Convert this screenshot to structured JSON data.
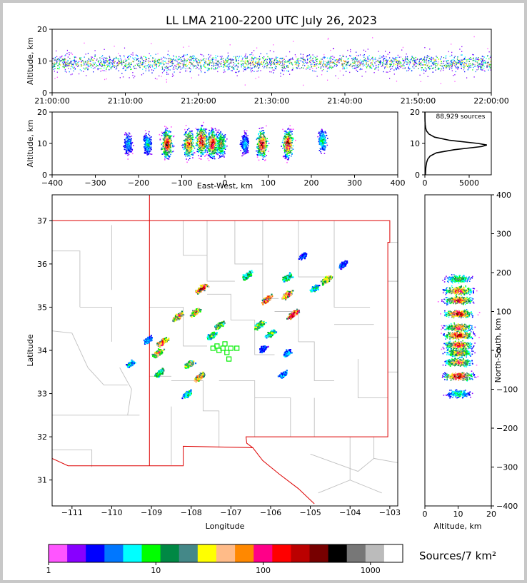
{
  "title": "LL LMA 2100-2200 UTC July 26, 2023",
  "colors": {
    "colorbar": [
      "#ff55ff",
      "#8800ff",
      "#0000ff",
      "#0077ff",
      "#00ffff",
      "#00ff00",
      "#008844",
      "#448888",
      "#ffff00",
      "#ffbb88",
      "#ff8800",
      "#ff0088",
      "#ff0000",
      "#bb0000",
      "#770000",
      "#000000",
      "#777777",
      "#bbbbbb",
      "#ffffff"
    ],
    "border_red": "#dd0000",
    "county_gray": "#c0c0c0",
    "source_green": "#00ee00"
  },
  "chart_data": [
    {
      "id": "time_height",
      "type": "scatter",
      "xlabel": "",
      "ylabel": "Altitude, km",
      "xlim": [
        "21:00:00",
        "22:00:00"
      ],
      "ylim": [
        0,
        20
      ],
      "xticks": [
        "21:00:00",
        "21:10:00",
        "21:20:00",
        "21:30:00",
        "21:40:00",
        "21:50:00",
        "22:00:00"
      ],
      "yticks": [
        "0",
        "10",
        "20"
      ],
      "band_center_km": 9.5
    },
    {
      "id": "ew_height",
      "type": "heatmap",
      "xlabel": "East-West, km",
      "ylabel": "Altitude, km",
      "xlim": [
        -400,
        400
      ],
      "ylim": [
        0,
        20
      ],
      "xticks": [
        "−400",
        "−300",
        "−200",
        "−100",
        "0",
        "100",
        "200",
        "300",
        "400"
      ],
      "yticks": [
        "0",
        "10",
        "20"
      ],
      "clusters": [
        {
          "x": -225,
          "z": 10,
          "intensity": 0.3
        },
        {
          "x": -180,
          "z": 10,
          "intensity": 0.35
        },
        {
          "x": -135,
          "z": 10,
          "intensity": 0.95
        },
        {
          "x": -85,
          "z": 10,
          "intensity": 0.85
        },
        {
          "x": -55,
          "z": 11,
          "intensity": 1.0
        },
        {
          "x": -30,
          "z": 10,
          "intensity": 0.9
        },
        {
          "x": -10,
          "z": 10,
          "intensity": 0.6
        },
        {
          "x": 45,
          "z": 10,
          "intensity": 0.3
        },
        {
          "x": 85,
          "z": 10,
          "intensity": 0.95
        },
        {
          "x": 145,
          "z": 10,
          "intensity": 0.95
        },
        {
          "x": 225,
          "z": 11,
          "intensity": 0.4
        }
      ]
    },
    {
      "id": "alt_histogram",
      "type": "line",
      "annotation": "88,929 sources",
      "xlim": [
        0,
        7500
      ],
      "ylim": [
        0,
        20
      ],
      "xticks": [
        "0",
        "5000"
      ],
      "yticks": [
        "0",
        "10",
        "20"
      ],
      "profile": [
        [
          0,
          60
        ],
        [
          1,
          80
        ],
        [
          2,
          100
        ],
        [
          3,
          140
        ],
        [
          4,
          200
        ],
        [
          5,
          320
        ],
        [
          6,
          600
        ],
        [
          7,
          1300
        ],
        [
          8,
          3300
        ],
        [
          9,
          6400
        ],
        [
          9.5,
          7000
        ],
        [
          10,
          6000
        ],
        [
          11,
          2800
        ],
        [
          12,
          1100
        ],
        [
          13,
          450
        ],
        [
          14,
          180
        ],
        [
          15,
          80
        ],
        [
          16,
          40
        ],
        [
          17,
          20
        ],
        [
          18,
          10
        ],
        [
          20,
          5
        ]
      ]
    },
    {
      "id": "plan_view",
      "type": "heatmap",
      "xlabel": "Longitude",
      "ylabel": "Latitude",
      "xlim": [
        -111.5,
        -102.8
      ],
      "ylim": [
        30.4,
        37.6
      ],
      "xticks": [
        "−111",
        "−110",
        "−109",
        "−108",
        "−107",
        "−106",
        "−105",
        "−104",
        "−103"
      ],
      "yticks": [
        "31",
        "32",
        "33",
        "34",
        "35",
        "36",
        "37"
      ],
      "clusters": [
        {
          "lon": -107.75,
          "lat": 35.45,
          "intensity": 0.9
        },
        {
          "lon": -107.9,
          "lat": 34.9,
          "intensity": 0.7
        },
        {
          "lon": -108.35,
          "lat": 34.8,
          "intensity": 0.8
        },
        {
          "lon": -108.75,
          "lat": 34.2,
          "intensity": 0.85
        },
        {
          "lon": -108.85,
          "lat": 33.95,
          "intensity": 0.7
        },
        {
          "lon": -108.8,
          "lat": 33.5,
          "intensity": 0.5
        },
        {
          "lon": -108.05,
          "lat": 33.7,
          "intensity": 0.6
        },
        {
          "lon": -107.8,
          "lat": 33.4,
          "intensity": 0.8
        },
        {
          "lon": -108.1,
          "lat": 33.0,
          "intensity": 0.4
        },
        {
          "lon": -107.3,
          "lat": 34.6,
          "intensity": 0.6
        },
        {
          "lon": -107.5,
          "lat": 34.35,
          "intensity": 0.5
        },
        {
          "lon": -109.55,
          "lat": 33.7,
          "intensity": 0.35
        },
        {
          "lon": -109.1,
          "lat": 34.25,
          "intensity": 0.3
        },
        {
          "lon": -106.6,
          "lat": 35.75,
          "intensity": 0.5
        },
        {
          "lon": -106.1,
          "lat": 35.2,
          "intensity": 0.9
        },
        {
          "lon": -106.3,
          "lat": 34.6,
          "intensity": 0.6
        },
        {
          "lon": -106.0,
          "lat": 34.4,
          "intensity": 0.5
        },
        {
          "lon": -105.6,
          "lat": 35.3,
          "intensity": 0.8
        },
        {
          "lon": -105.45,
          "lat": 34.85,
          "intensity": 0.95
        },
        {
          "lon": -105.6,
          "lat": 35.7,
          "intensity": 0.5
        },
        {
          "lon": -104.6,
          "lat": 35.65,
          "intensity": 0.7
        },
        {
          "lon": -104.9,
          "lat": 35.45,
          "intensity": 0.4
        },
        {
          "lon": -105.2,
          "lat": 36.2,
          "intensity": 0.25
        },
        {
          "lon": -104.2,
          "lat": 36.0,
          "intensity": 0.25
        },
        {
          "lon": -105.7,
          "lat": 33.45,
          "intensity": 0.3
        },
        {
          "lon": -105.6,
          "lat": 33.95,
          "intensity": 0.3
        },
        {
          "lon": -106.2,
          "lat": 34.05,
          "intensity": 0.25
        }
      ],
      "stations": [
        [
          -107.15,
          34.15
        ],
        [
          -107.35,
          34.1
        ],
        [
          -107.0,
          34.05
        ],
        [
          -106.85,
          34.05
        ],
        [
          -107.1,
          33.95
        ],
        [
          -107.3,
          34.0
        ],
        [
          -107.05,
          33.8
        ],
        [
          -107.45,
          34.05
        ],
        [
          -107.2,
          34.05
        ]
      ]
    },
    {
      "id": "ns_height",
      "type": "heatmap",
      "xlabel": "Altitude, km",
      "ylabel": "North-South, km",
      "xlim": [
        0,
        20
      ],
      "ylim": [
        -400,
        400
      ],
      "xticks": [
        "0",
        "10",
        "20"
      ],
      "yticks": [
        "−400",
        "−300",
        "−200",
        "−100",
        "0",
        "100",
        "200",
        "300",
        "400"
      ],
      "clusters": [
        {
          "y": 185,
          "z": 10,
          "intensity": 0.5
        },
        {
          "y": 155,
          "z": 10,
          "intensity": 0.85
        },
        {
          "y": 130,
          "z": 10,
          "intensity": 0.9
        },
        {
          "y": 95,
          "z": 10,
          "intensity": 0.95
        },
        {
          "y": 60,
          "z": 10,
          "intensity": 0.8
        },
        {
          "y": 40,
          "z": 10,
          "intensity": 0.95
        },
        {
          "y": 15,
          "z": 10,
          "intensity": 0.85
        },
        {
          "y": -5,
          "z": 10,
          "intensity": 0.7
        },
        {
          "y": -30,
          "z": 10,
          "intensity": 0.75
        },
        {
          "y": -65,
          "z": 10,
          "intensity": 1.0
        },
        {
          "y": -110,
          "z": 10,
          "intensity": 0.4
        }
      ]
    }
  ],
  "colorbar": {
    "label": "Sources/7 km²",
    "ticks": [
      "1",
      "10",
      "100",
      "1000"
    ],
    "tick_values": [
      1,
      10,
      100,
      1000
    ],
    "range": [
      1,
      2000
    ],
    "scale": "log"
  }
}
